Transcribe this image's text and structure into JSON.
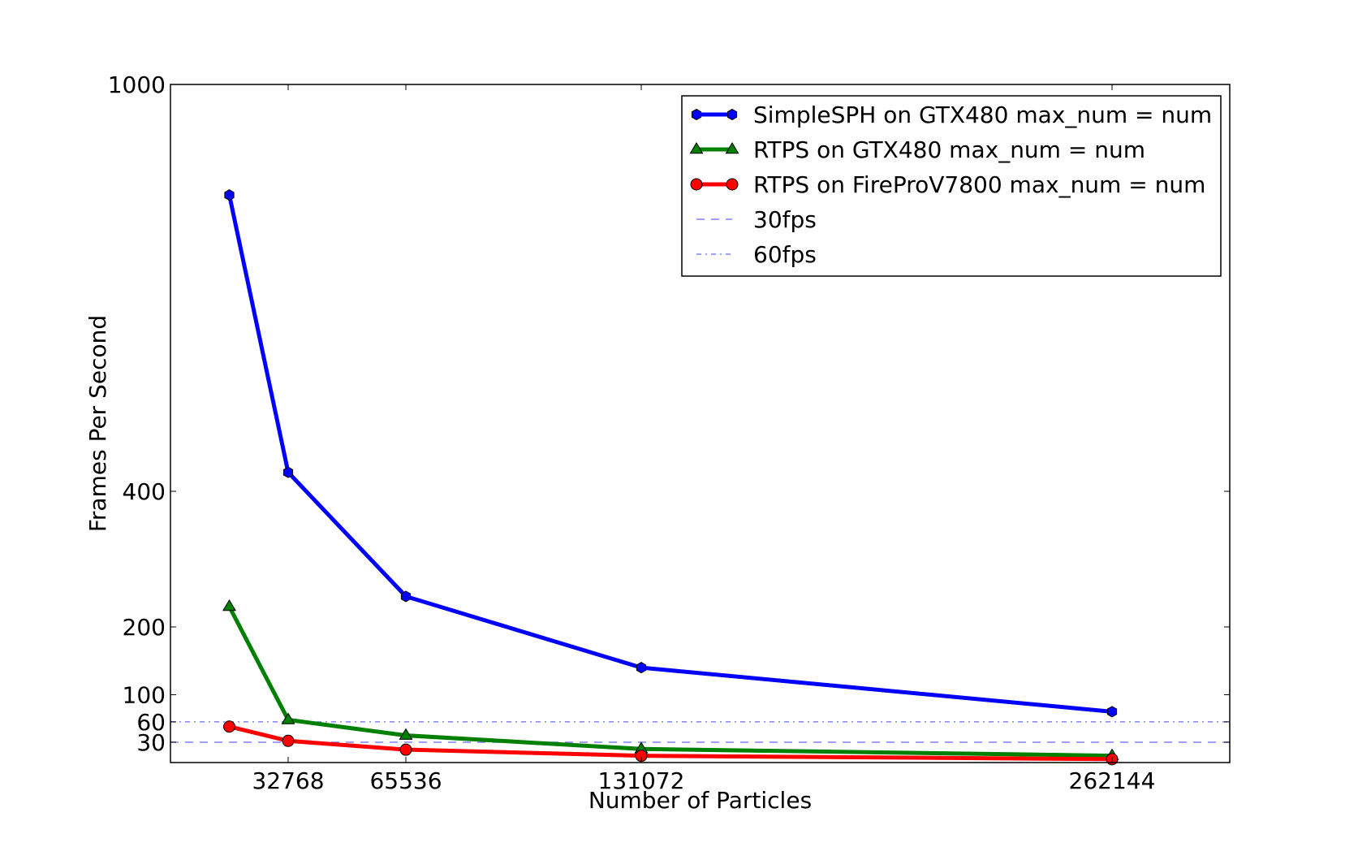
{
  "chart_data": {
    "type": "line",
    "title": "",
    "xlabel": "Number of Particles",
    "ylabel": "Frames Per Second",
    "xlim": [
      0,
      294912
    ],
    "ylim": [
      0,
      1000
    ],
    "x_ticks": [
      32768,
      65536,
      131072,
      262144
    ],
    "x_tick_labels": [
      "32768",
      "65536",
      "131072",
      "262144"
    ],
    "y_ticks": [
      30,
      60,
      100,
      200,
      400,
      1000
    ],
    "y_tick_labels": [
      "30",
      "60",
      "100",
      "200",
      "400",
      "1000"
    ],
    "y_scale": "nonlinear (ticks 0-400 evenly spaced by value, 400-1000 compressed)",
    "grid": false,
    "legend_position": "top-right",
    "x": [
      16384,
      32768,
      65536,
      131072,
      262144
    ],
    "series": [
      {
        "name": "SimpleSPH on GTX480 max_num = num",
        "values": [
          837,
          428,
          245,
          140,
          75
        ],
        "color": "#0000ff",
        "marker": "hexagon",
        "linestyle": "solid"
      },
      {
        "name": "RTPS on GTX480 max_num = num",
        "values": [
          230,
          63,
          40,
          20,
          10
        ],
        "color": "#008000",
        "marker": "triangle",
        "linestyle": "solid"
      },
      {
        "name": "RTPS on FireProV7800 max_num = num",
        "values": [
          53,
          32,
          19,
          10,
          5
        ],
        "color": "#ff0000",
        "marker": "circle",
        "linestyle": "solid"
      },
      {
        "name": "30fps",
        "hline": 30,
        "color": "#8080ff",
        "linestyle": "dashed"
      },
      {
        "name": "60fps",
        "hline": 60,
        "color": "#8080ff",
        "linestyle": "dashdot"
      }
    ]
  }
}
